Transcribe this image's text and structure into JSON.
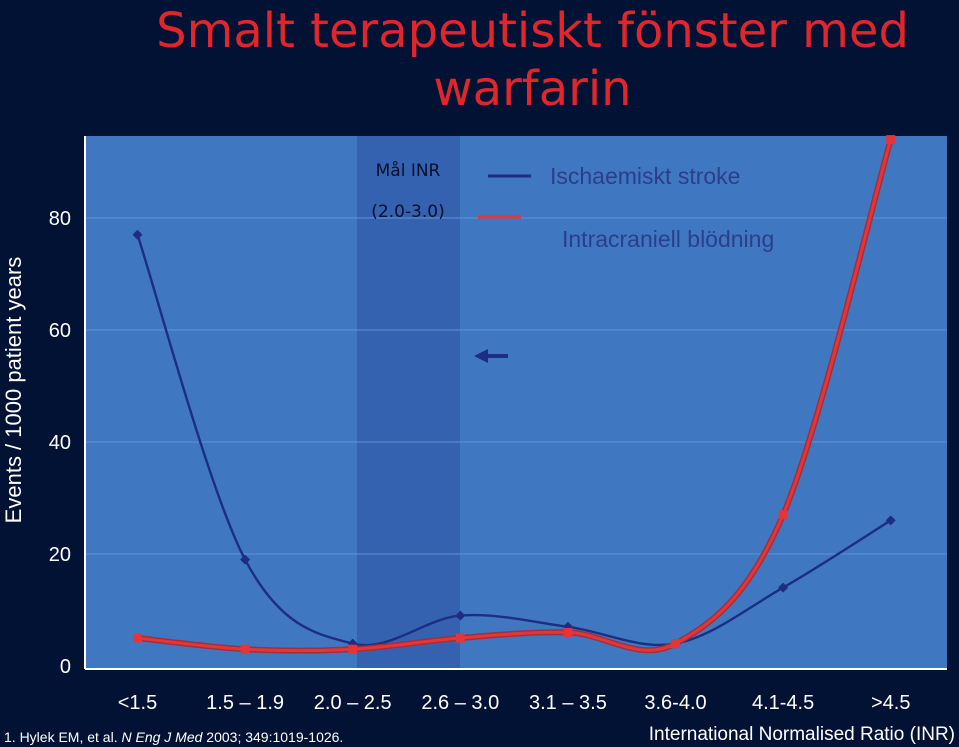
{
  "title": {
    "line1": "Smalt terapeutiskt fönster med",
    "line2": "warfarin"
  },
  "target_band": {
    "line1": "Mål INR",
    "line2": "(2.0-3.0)",
    "from_category": "2.0 – 2.5",
    "to_category": "2.6 – 3.0"
  },
  "citation": {
    "prefix": "1. Hylek EM, et al. ",
    "journal": "N Eng J Med",
    "suffix": " 2003; 349:1019-1026."
  },
  "colors": {
    "background": "#021235",
    "plot_area": "#3f78c1",
    "target_band": "#3462b0",
    "stroke_series": "#1d2d80",
    "bleed_series": "#e5343a",
    "title": "#e0262b"
  },
  "chart_data": {
    "type": "line",
    "title": "Smalt terapeutiskt fönster med warfarin",
    "xlabel": "International Normalised Ratio (INR)",
    "ylabel": "Events / 1000 patient years",
    "categories": [
      "<1.5",
      "1.5 – 1.9",
      "2.0 – 2.5",
      "2.6 – 3.0",
      "3.1 – 3.5",
      "3.6-4.0",
      "4.1-4.5",
      ">4.5"
    ],
    "yticks": [
      0,
      20,
      40,
      60,
      80
    ],
    "ylim": [
      0,
      92
    ],
    "grid": true,
    "legend_position": "top-right",
    "series": [
      {
        "name": "Ischaemiskt stroke",
        "color": "#1d2d80",
        "marker": "diamond",
        "values": [
          77,
          19,
          4,
          9,
          7,
          4,
          14,
          26
        ]
      },
      {
        "name": "Intracraniell blödning",
        "color": "#e5343a",
        "marker": "square",
        "values": [
          5,
          3,
          3,
          5,
          6,
          4,
          27,
          94
        ]
      }
    ],
    "annotations": [
      {
        "type": "arrow",
        "direction": "left",
        "label": ""
      }
    ]
  }
}
